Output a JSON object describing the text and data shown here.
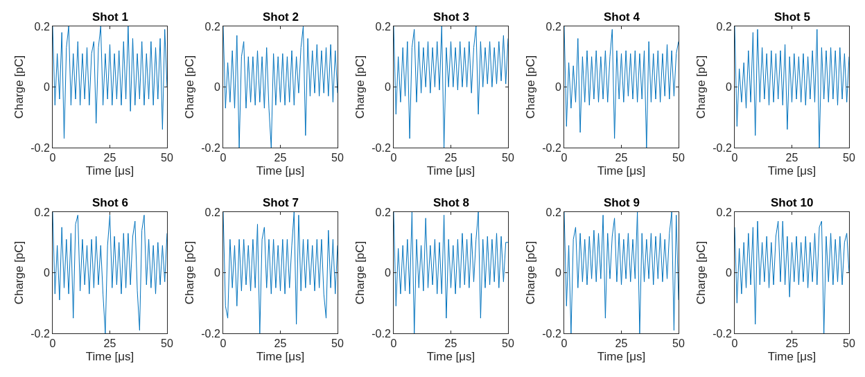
{
  "chart_data": [
    {
      "type": "line",
      "title": "Shot 1",
      "xlabel": "Time [μs]",
      "ylabel": "Charge [pC]",
      "xlim": [
        0,
        50
      ],
      "xticks": [
        0,
        25,
        50
      ],
      "ylim": [
        -0.2,
        0.2
      ],
      "yticks": [
        -0.2,
        0,
        0.2
      ],
      "marker": "none",
      "line_style": "solid",
      "x": [
        0,
        1,
        2,
        3,
        4,
        5,
        6,
        7,
        8,
        9,
        10,
        11,
        12,
        13,
        14,
        15,
        16,
        17,
        18,
        19,
        20,
        21,
        22,
        23,
        24,
        25,
        26,
        27,
        28,
        29,
        30,
        31,
        32,
        33,
        34,
        35,
        36,
        37,
        38,
        39,
        40,
        41,
        42,
        43,
        44,
        45,
        46,
        47,
        48,
        49,
        50
      ],
      "series": [
        {
          "color": "#0072bd",
          "values": [
            0.2,
            -0.06,
            0.11,
            -0.04,
            0.18,
            -0.17,
            0.13,
            0.2,
            -0.06,
            0.11,
            -0.04,
            0.15,
            -0.06,
            0.11,
            -0.04,
            0.13,
            -0.06,
            0.11,
            0.15,
            -0.12,
            0.13,
            0.2,
            -0.06,
            0.11,
            -0.04,
            0.14,
            -0.06,
            0.11,
            -0.04,
            0.12,
            -0.06,
            0.15,
            -0.04,
            0.2,
            -0.08,
            0.16,
            -0.06,
            0.11,
            -0.04,
            0.15,
            -0.06,
            0.11,
            -0.04,
            0.15,
            -0.06,
            0.13,
            -0.04,
            0.16,
            -0.14,
            0.19,
            0.0
          ]
        }
      ]
    },
    {
      "type": "line",
      "title": "Shot 2",
      "xlabel": "Time [μs]",
      "ylabel": "Charge [pC]",
      "xlim": [
        0,
        50
      ],
      "xticks": [
        0,
        25,
        50
      ],
      "ylim": [
        -0.2,
        0.2
      ],
      "yticks": [
        -0.2,
        0,
        0.2
      ],
      "marker": "none",
      "line_style": "solid",
      "x": [
        0,
        1,
        2,
        3,
        4,
        5,
        6,
        7,
        8,
        9,
        10,
        11,
        12,
        13,
        14,
        15,
        16,
        17,
        18,
        19,
        20,
        21,
        22,
        23,
        24,
        25,
        26,
        27,
        28,
        29,
        30,
        31,
        32,
        33,
        34,
        35,
        36,
        37,
        38,
        39,
        40,
        41,
        42,
        43,
        44,
        45,
        46,
        47,
        48,
        49,
        50
      ],
      "series": [
        {
          "color": "#0072bd",
          "values": [
            0.2,
            -0.07,
            0.08,
            -0.05,
            0.12,
            -0.07,
            0.17,
            -0.2,
            0.1,
            0.15,
            -0.07,
            0.1,
            -0.05,
            0.1,
            -0.06,
            0.12,
            -0.05,
            0.1,
            -0.07,
            0.13,
            -0.07,
            -0.2,
            0.11,
            -0.06,
            0.1,
            -0.05,
            0.11,
            -0.06,
            0.1,
            -0.05,
            0.12,
            -0.06,
            0.1,
            -0.02,
            0.13,
            0.2,
            -0.16,
            0.16,
            -0.03,
            0.12,
            -0.02,
            0.14,
            -0.03,
            0.12,
            -0.02,
            0.13,
            -0.03,
            0.14,
            -0.05,
            0.12,
            -0.02
          ]
        }
      ]
    },
    {
      "type": "line",
      "title": "Shot 3",
      "xlabel": "Time [μs]",
      "ylabel": "Charge [pC]",
      "xlim": [
        0,
        50
      ],
      "xticks": [
        0,
        25,
        50
      ],
      "ylim": [
        -0.2,
        0.2
      ],
      "yticks": [
        -0.2,
        0,
        0.2
      ],
      "marker": "none",
      "line_style": "solid",
      "x": [
        0,
        1,
        2,
        3,
        4,
        5,
        6,
        7,
        8,
        9,
        10,
        11,
        12,
        13,
        14,
        15,
        16,
        17,
        18,
        19,
        20,
        21,
        22,
        23,
        24,
        25,
        26,
        27,
        28,
        29,
        30,
        31,
        32,
        33,
        34,
        35,
        36,
        37,
        38,
        39,
        40,
        41,
        42,
        43,
        44,
        45,
        46,
        47,
        48,
        49,
        50
      ],
      "series": [
        {
          "color": "#0072bd",
          "values": [
            0.2,
            -0.09,
            0.1,
            -0.05,
            0.13,
            -0.03,
            0.15,
            -0.17,
            0.13,
            0.19,
            -0.05,
            0.15,
            -0.02,
            0.13,
            0.0,
            0.15,
            -0.02,
            0.13,
            0.0,
            0.15,
            -0.01,
            0.2,
            -0.2,
            0.13,
            0.0,
            0.15,
            0.0,
            0.13,
            -0.01,
            0.15,
            0.0,
            0.13,
            0.0,
            0.15,
            -0.02,
            0.13,
            0.2,
            -0.09,
            0.15,
            0.0,
            0.13,
            0.01,
            0.15,
            0.0,
            0.13,
            0.01,
            0.15,
            0.02,
            0.17,
            0.01,
            0.16
          ]
        }
      ]
    },
    {
      "type": "line",
      "title": "Shot 4",
      "xlabel": "Time [μs]",
      "ylabel": "Charge [pC]",
      "xlim": [
        0,
        50
      ],
      "xticks": [
        0,
        25,
        50
      ],
      "ylim": [
        -0.2,
        0.2
      ],
      "yticks": [
        -0.2,
        0,
        0.2
      ],
      "marker": "none",
      "line_style": "solid",
      "x": [
        0,
        1,
        2,
        3,
        4,
        5,
        6,
        7,
        8,
        9,
        10,
        11,
        12,
        13,
        14,
        15,
        16,
        17,
        18,
        19,
        20,
        21,
        22,
        23,
        24,
        25,
        26,
        27,
        28,
        29,
        30,
        31,
        32,
        33,
        34,
        35,
        36,
        37,
        38,
        39,
        40,
        41,
        42,
        43,
        44,
        45,
        46,
        47,
        48,
        49,
        50
      ],
      "series": [
        {
          "color": "#0072bd",
          "values": [
            0.2,
            -0.13,
            0.08,
            -0.07,
            0.07,
            -0.05,
            0.16,
            -0.15,
            0.1,
            -0.05,
            0.12,
            -0.06,
            0.1,
            -0.04,
            0.12,
            -0.05,
            0.1,
            -0.04,
            0.12,
            -0.05,
            0.1,
            0.19,
            -0.17,
            0.12,
            -0.04,
            0.11,
            -0.05,
            0.12,
            -0.03,
            0.11,
            -0.04,
            0.12,
            -0.05,
            0.11,
            -0.04,
            0.12,
            -0.2,
            0.15,
            -0.05,
            0.11,
            -0.04,
            0.12,
            -0.05,
            0.11,
            -0.03,
            0.14,
            -0.04,
            0.12,
            -0.03,
            0.11,
            0.15
          ]
        }
      ]
    },
    {
      "type": "line",
      "title": "Shot 5",
      "xlabel": "Time [μs]",
      "ylabel": "Charge [pC]",
      "xlim": [
        0,
        50
      ],
      "xticks": [
        0,
        25,
        50
      ],
      "ylim": [
        -0.2,
        0.2
      ],
      "yticks": [
        -0.2,
        0,
        0.2
      ],
      "marker": "none",
      "line_style": "solid",
      "x": [
        0,
        1,
        2,
        3,
        4,
        5,
        6,
        7,
        8,
        9,
        10,
        11,
        12,
        13,
        14,
        15,
        16,
        17,
        18,
        19,
        20,
        21,
        22,
        23,
        24,
        25,
        26,
        27,
        28,
        29,
        30,
        31,
        32,
        33,
        34,
        35,
        36,
        37,
        38,
        39,
        40,
        41,
        42,
        43,
        44,
        45,
        46,
        47,
        48,
        49,
        50
      ],
      "series": [
        {
          "color": "#0072bd",
          "values": [
            0.2,
            -0.13,
            0.06,
            -0.05,
            0.08,
            -0.07,
            0.12,
            -0.05,
            0.18,
            -0.16,
            0.19,
            -0.05,
            0.13,
            -0.04,
            0.11,
            -0.06,
            0.12,
            -0.05,
            0.11,
            -0.04,
            0.12,
            -0.06,
            0.14,
            -0.14,
            0.1,
            -0.05,
            0.11,
            -0.04,
            0.1,
            -0.05,
            0.11,
            -0.06,
            0.1,
            -0.04,
            0.12,
            -0.05,
            0.19,
            -0.2,
            0.13,
            -0.04,
            0.12,
            -0.05,
            0.13,
            -0.04,
            0.12,
            -0.06,
            0.13,
            -0.04,
            0.11,
            -0.05,
            0.1
          ]
        }
      ]
    },
    {
      "type": "line",
      "title": "Shot 6",
      "xlabel": "Time [μs]",
      "ylabel": "Charge [pC]",
      "xlim": [
        0,
        50
      ],
      "xticks": [
        0,
        25,
        50
      ],
      "ylim": [
        -0.2,
        0.2
      ],
      "yticks": [
        -0.2,
        0,
        0.2
      ],
      "marker": "none",
      "line_style": "solid",
      "x": [
        0,
        1,
        2,
        3,
        4,
        5,
        6,
        7,
        8,
        9,
        10,
        11,
        12,
        13,
        14,
        15,
        16,
        17,
        18,
        19,
        20,
        21,
        22,
        23,
        24,
        25,
        26,
        27,
        28,
        29,
        30,
        31,
        32,
        33,
        34,
        35,
        36,
        37,
        38,
        39,
        40,
        41,
        42,
        43,
        44,
        45,
        46,
        47,
        48,
        49,
        50
      ],
      "series": [
        {
          "color": "#0072bd",
          "values": [
            0.2,
            -0.07,
            0.09,
            -0.09,
            0.15,
            -0.05,
            0.11,
            -0.07,
            0.13,
            -0.15,
            0.16,
            0.19,
            -0.06,
            0.11,
            -0.04,
            0.09,
            -0.07,
            0.11,
            -0.05,
            0.12,
            -0.04,
            0.09,
            -0.07,
            -0.2,
            0.09,
            0.19,
            -0.05,
            0.12,
            -0.04,
            0.1,
            -0.07,
            0.13,
            -0.05,
            0.13,
            -0.04,
            0.12,
            0.17,
            -0.06,
            -0.19,
            0.14,
            0.19,
            -0.04,
            0.11,
            -0.05,
            0.09,
            -0.07,
            0.1,
            -0.04,
            0.09,
            -0.03,
            0.13
          ]
        }
      ]
    },
    {
      "type": "line",
      "title": "Shot 7",
      "xlabel": "Time [μs]",
      "ylabel": "Charge [pC]",
      "xlim": [
        0,
        50
      ],
      "xticks": [
        0,
        25,
        50
      ],
      "ylim": [
        -0.2,
        0.2
      ],
      "yticks": [
        -0.2,
        0,
        0.2
      ],
      "marker": "none",
      "line_style": "solid",
      "x": [
        0,
        1,
        2,
        3,
        4,
        5,
        6,
        7,
        8,
        9,
        10,
        11,
        12,
        13,
        14,
        15,
        16,
        17,
        18,
        19,
        20,
        21,
        22,
        23,
        24,
        25,
        26,
        27,
        28,
        29,
        30,
        31,
        32,
        33,
        34,
        35,
        36,
        37,
        38,
        39,
        40,
        41,
        42,
        43,
        44,
        45,
        46,
        47,
        48,
        49,
        50
      ],
      "series": [
        {
          "color": "#0072bd",
          "values": [
            0.2,
            -0.11,
            -0.15,
            0.11,
            -0.05,
            0.09,
            -0.11,
            0.11,
            -0.06,
            0.11,
            -0.04,
            0.09,
            -0.06,
            0.11,
            -0.05,
            0.16,
            -0.2,
            0.11,
            0.15,
            -0.05,
            0.11,
            -0.07,
            0.11,
            -0.05,
            0.09,
            -0.06,
            0.11,
            -0.07,
            0.11,
            -0.05,
            0.09,
            0.2,
            -0.17,
            0.19,
            -0.06,
            0.11,
            -0.05,
            0.11,
            -0.04,
            0.09,
            -0.06,
            0.11,
            -0.05,
            0.11,
            -0.07,
            -0.15,
            0.14,
            -0.05,
            0.11,
            -0.07,
            0.09
          ]
        }
      ]
    },
    {
      "type": "line",
      "title": "Shot 8",
      "xlabel": "Time [μs]",
      "ylabel": "Charge [pC]",
      "xlim": [
        0,
        50
      ],
      "xticks": [
        0,
        25,
        50
      ],
      "ylim": [
        -0.2,
        0.2
      ],
      "yticks": [
        -0.2,
        0,
        0.2
      ],
      "marker": "none",
      "line_style": "solid",
      "x": [
        0,
        1,
        2,
        3,
        4,
        5,
        6,
        7,
        8,
        9,
        10,
        11,
        12,
        13,
        14,
        15,
        16,
        17,
        18,
        19,
        20,
        21,
        22,
        23,
        24,
        25,
        26,
        27,
        28,
        29,
        30,
        31,
        32,
        33,
        34,
        35,
        36,
        37,
        38,
        39,
        40,
        41,
        42,
        43,
        44,
        45,
        46,
        47,
        48,
        49,
        50
      ],
      "series": [
        {
          "color": "#0072bd",
          "values": [
            0.2,
            -0.11,
            0.08,
            -0.07,
            0.09,
            -0.06,
            0.11,
            -0.07,
            0.2,
            -0.2,
            0.11,
            -0.05,
            0.09,
            -0.06,
            0.18,
            -0.05,
            0.09,
            -0.04,
            0.11,
            -0.07,
            0.1,
            -0.07,
            0.19,
            -0.15,
            0.11,
            -0.05,
            0.09,
            -0.07,
            0.11,
            -0.05,
            0.13,
            -0.04,
            0.11,
            -0.05,
            0.13,
            -0.03,
            0.11,
            0.2,
            -0.15,
            0.11,
            -0.05,
            0.12,
            -0.04,
            0.11,
            -0.03,
            0.13,
            -0.05,
            0.12,
            -0.03,
            0.1,
            0.1
          ]
        }
      ]
    },
    {
      "type": "line",
      "title": "Shot 9",
      "xlabel": "Time [μs]",
      "ylabel": "Charge [pC]",
      "xlim": [
        0,
        50
      ],
      "xticks": [
        0,
        25,
        50
      ],
      "ylim": [
        -0.2,
        0.2
      ],
      "yticks": [
        -0.2,
        0,
        0.2
      ],
      "marker": "none",
      "line_style": "solid",
      "x": [
        0,
        1,
        2,
        3,
        4,
        5,
        6,
        7,
        8,
        9,
        10,
        11,
        12,
        13,
        14,
        15,
        16,
        17,
        18,
        19,
        20,
        21,
        22,
        23,
        24,
        25,
        26,
        27,
        28,
        29,
        30,
        31,
        32,
        33,
        34,
        35,
        36,
        37,
        38,
        39,
        40,
        41,
        42,
        43,
        44,
        45,
        46,
        47,
        48,
        49,
        50
      ],
      "series": [
        {
          "color": "#0072bd",
          "values": [
            0.2,
            -0.11,
            0.09,
            -0.2,
            0.11,
            0.15,
            -0.05,
            0.13,
            -0.03,
            0.11,
            -0.04,
            0.12,
            -0.02,
            0.14,
            -0.03,
            0.13,
            -0.02,
            0.19,
            -0.15,
            0.13,
            -0.02,
            0.12,
            0.18,
            -0.03,
            0.13,
            -0.04,
            0.11,
            -0.02,
            0.13,
            -0.03,
            0.11,
            -0.02,
            0.2,
            -0.2,
            0.13,
            -0.03,
            0.11,
            -0.02,
            0.13,
            -0.04,
            0.12,
            -0.02,
            0.13,
            -0.03,
            0.11,
            -0.02,
            0.13,
            0.2,
            -0.19,
            0.19,
            -0.09
          ]
        }
      ]
    },
    {
      "type": "line",
      "title": "Shot 10",
      "xlabel": "Time [μs]",
      "ylabel": "Charge [pC]",
      "xlim": [
        0,
        50
      ],
      "xticks": [
        0,
        25,
        50
      ],
      "ylim": [
        -0.2,
        0.2
      ],
      "yticks": [
        -0.2,
        0,
        0.2
      ],
      "marker": "none",
      "line_style": "solid",
      "x": [
        0,
        1,
        2,
        3,
        4,
        5,
        6,
        7,
        8,
        9,
        10,
        11,
        12,
        13,
        14,
        15,
        16,
        17,
        18,
        19,
        20,
        21,
        22,
        23,
        24,
        25,
        26,
        27,
        28,
        29,
        30,
        31,
        32,
        33,
        34,
        35,
        36,
        37,
        38,
        39,
        40,
        41,
        42,
        43,
        44,
        45,
        46,
        47,
        48,
        49,
        50
      ],
      "series": [
        {
          "color": "#0072bd",
          "values": [
            0.15,
            -0.1,
            0.08,
            -0.07,
            0.1,
            -0.05,
            0.13,
            -0.04,
            0.15,
            -0.17,
            0.17,
            -0.04,
            0.1,
            -0.03,
            0.12,
            -0.05,
            0.1,
            -0.04,
            0.12,
            0.17,
            -0.03,
            0.17,
            -0.04,
            0.12,
            -0.08,
            0.1,
            -0.03,
            0.12,
            -0.04,
            0.1,
            -0.03,
            0.12,
            -0.05,
            0.1,
            -0.03,
            0.13,
            -0.04,
            0.15,
            0.17,
            -0.2,
            0.12,
            -0.03,
            0.13,
            -0.04,
            0.11,
            -0.03,
            0.12,
            -0.04,
            0.1,
            0.13,
            0.0
          ]
        }
      ]
    }
  ]
}
